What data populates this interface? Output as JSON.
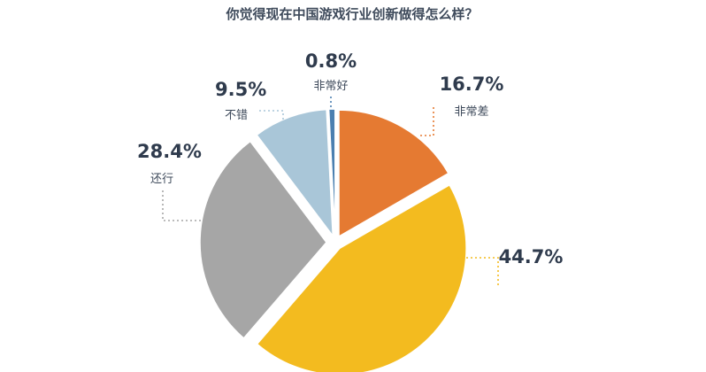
{
  "chart_data": {
    "type": "pie",
    "title": "你觉得现在中国游戏行业创新做得怎么样？",
    "slices": [
      {
        "label": "非常差",
        "value": 16.7,
        "value_label": "16.7%",
        "color": "#E57A32"
      },
      {
        "label": "",
        "value": 44.7,
        "value_label": "44.7%",
        "color": "#F3BB1F"
      },
      {
        "label": "还行",
        "value": 28.4,
        "value_label": "28.4%",
        "color": "#A6A6A6"
      },
      {
        "label": "不错",
        "value": 9.5,
        "value_label": "9.5%",
        "color": "#A9C6D8"
      },
      {
        "label": "非常好",
        "value": 0.8,
        "value_label": "0.8%",
        "color": "#4A7FB0"
      }
    ],
    "start_angle": "12 o'clock",
    "direction": "clockwise",
    "exploded": true,
    "leader_lines": "dotted, colored by slice"
  }
}
